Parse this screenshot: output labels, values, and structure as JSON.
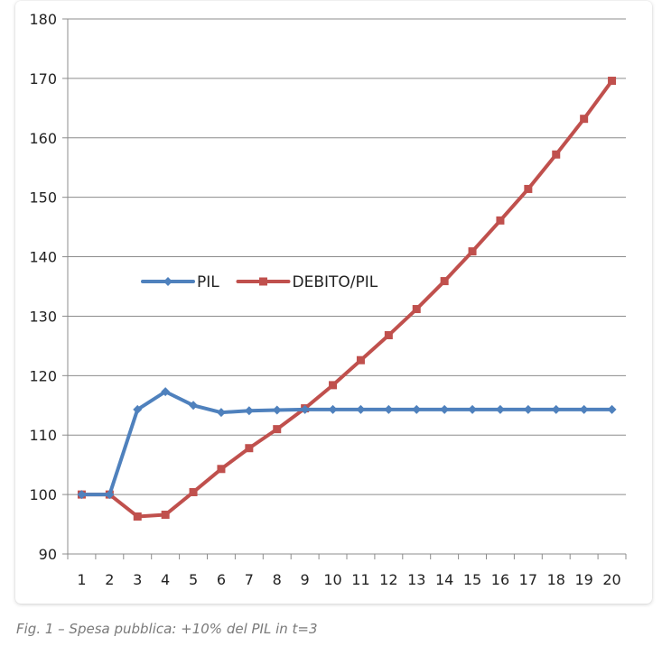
{
  "chart_data": {
    "type": "line",
    "categories": [
      "1",
      "2",
      "3",
      "4",
      "5",
      "6",
      "7",
      "8",
      "9",
      "10",
      "11",
      "12",
      "13",
      "14",
      "15",
      "16",
      "17",
      "18",
      "19",
      "20"
    ],
    "series": [
      {
        "name": "PIL",
        "color": "#4f81bd",
        "marker": "diamond",
        "values": [
          100,
          100,
          114.3,
          117.3,
          115.0,
          113.8,
          114.1,
          114.2,
          114.3,
          114.3,
          114.3,
          114.3,
          114.3,
          114.3,
          114.3,
          114.3,
          114.3,
          114.3,
          114.3,
          114.3
        ]
      },
      {
        "name": "DEBITO/PIL",
        "color": "#c0504d",
        "marker": "square",
        "values": [
          100,
          100,
          96.3,
          96.6,
          100.4,
          104.3,
          107.8,
          111.0,
          114.5,
          118.4,
          122.6,
          126.8,
          131.2,
          135.9,
          140.9,
          146.1,
          151.4,
          157.2,
          163.2,
          169.6
        ]
      }
    ],
    "yticks": [
      "90",
      "100",
      "110",
      "120",
      "130",
      "140",
      "150",
      "160",
      "170",
      "180"
    ],
    "ylim": [
      90,
      180
    ],
    "grid": true,
    "legend_position": "inside-left"
  },
  "caption": "Fig. 1 – Spesa pubblica: +10% del PIL in t=3"
}
